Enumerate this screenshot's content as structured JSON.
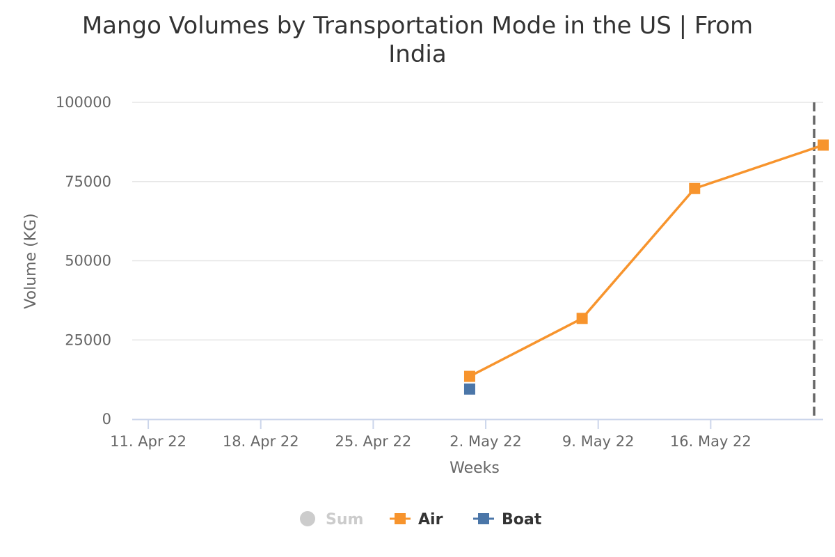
{
  "chart_data": {
    "type": "line",
    "title_lines": [
      "Mango Volumes by Transportation Mode in the US | From",
      "India"
    ],
    "xlabel": "Weeks",
    "ylabel": "Volume (KG)",
    "x_ticks": [
      "11. Apr 22",
      "18. Apr 22",
      "25. Apr 22",
      "2. May 22",
      "9. May 22",
      "16. May 22"
    ],
    "y_ticks": [
      0,
      25000,
      50000,
      75000,
      100000
    ],
    "ylim": [
      0,
      100000
    ],
    "xlim": [
      "2022-04-10",
      "2022-05-23"
    ],
    "grid": true,
    "legend_position": "bottom-center",
    "plot_line_x": "2022-05-23",
    "series": [
      {
        "name": "Sum",
        "visible": false,
        "color": "#cccccc",
        "marker": "circle",
        "x": [],
        "values": []
      },
      {
        "name": "Air",
        "visible": true,
        "color": "#f7942d",
        "marker": "square",
        "x": [
          "2022-05-01",
          "2022-05-08",
          "2022-05-15",
          "2022-05-23"
        ],
        "values": [
          13500,
          31800,
          72800,
          86500
        ]
      },
      {
        "name": "Boat",
        "visible": true,
        "color": "#4b76a8",
        "marker": "square",
        "x": [
          "2022-05-01"
        ],
        "values": [
          9500
        ]
      }
    ]
  }
}
